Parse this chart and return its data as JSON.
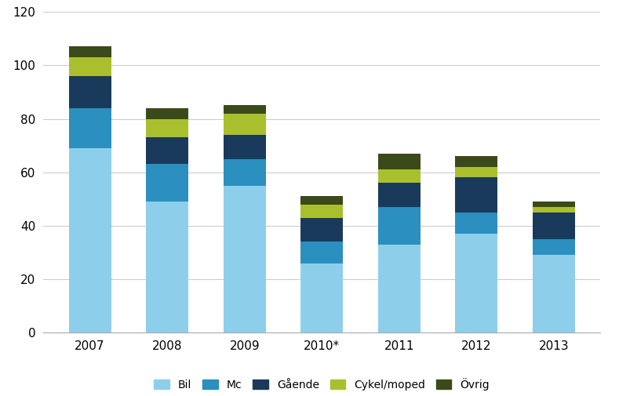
{
  "categories": [
    "2007",
    "2008",
    "2009",
    "2010*",
    "2011",
    "2012",
    "2013"
  ],
  "series": {
    "Bil": [
      69,
      49,
      55,
      26,
      33,
      37,
      29
    ],
    "Mc": [
      15,
      14,
      10,
      8,
      14,
      8,
      6
    ],
    "Gående": [
      12,
      10,
      9,
      9,
      9,
      13,
      10
    ],
    "Cykel/moped": [
      7,
      7,
      8,
      5,
      5,
      4,
      2
    ],
    "Övrig": [
      4,
      4,
      3,
      3,
      6,
      4,
      2
    ]
  },
  "colors": {
    "Bil": "#8DCFEA",
    "Mc": "#2B8FBF",
    "Gående": "#1A3A5C",
    "Cykel/moped": "#AABF2E",
    "Övrig": "#3A4A1A"
  },
  "ylim": [
    0,
    120
  ],
  "yticks": [
    0,
    20,
    40,
    60,
    80,
    100,
    120
  ],
  "bar_width": 0.55,
  "background_color": "#ffffff",
  "grid_color": "#cccccc",
  "legend_order": [
    "Bil",
    "Mc",
    "Gående",
    "Cykel/moped",
    "Övrig"
  ]
}
